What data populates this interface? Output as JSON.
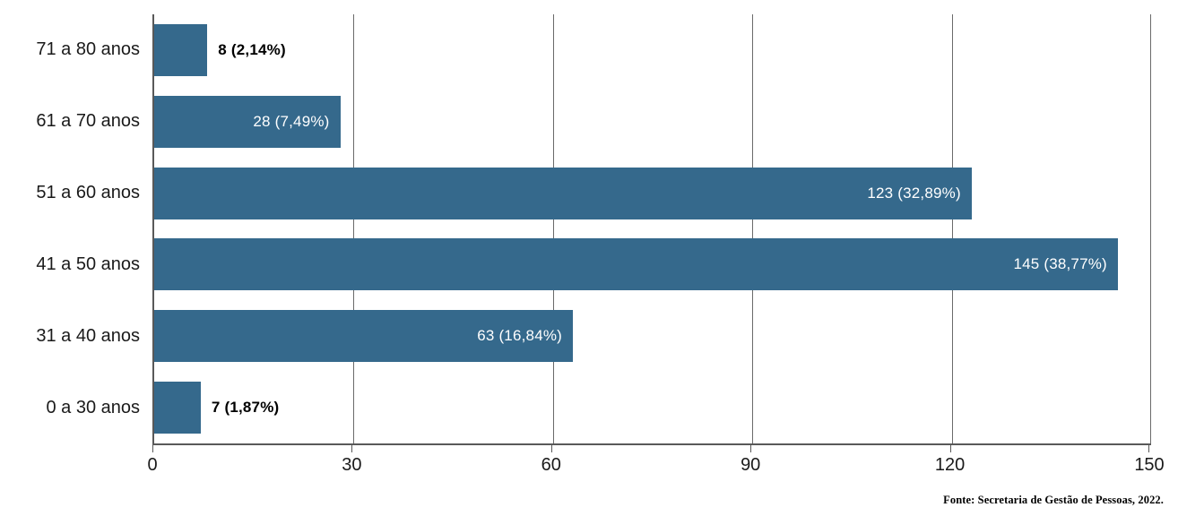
{
  "chart_data": {
    "type": "bar",
    "orientation": "horizontal",
    "title": "",
    "categories": [
      "71 a 80 anos",
      "61 a 70 anos",
      "51 a 60 anos",
      "41 a 50 anos",
      "31 a 40 anos",
      "0 a 30 anos"
    ],
    "values": [
      8,
      28,
      123,
      145,
      63,
      7
    ],
    "labels": [
      "8 (2,14%)",
      "28 (7,49%)",
      "123 (32,89%)",
      "145 (38,77%)",
      "63 (16,84%)",
      "7 (1,87%)"
    ],
    "percentages": [
      2.14,
      7.49,
      32.89,
      38.77,
      16.84,
      1.87
    ],
    "xlim": [
      0,
      150
    ],
    "x_ticks": [
      "0",
      "30",
      "60",
      "90",
      "120",
      "150"
    ],
    "grid": "vertical",
    "legend": "none",
    "bar_color": "#35698C",
    "axis_color": "#595959",
    "gridline_color": "#6A6A6A",
    "label_color_inside": "#FFFFFF",
    "label_color_outside": "#000000",
    "source_note": "Fonte: Secretaria de Gestão de Pessoas, 2022."
  }
}
